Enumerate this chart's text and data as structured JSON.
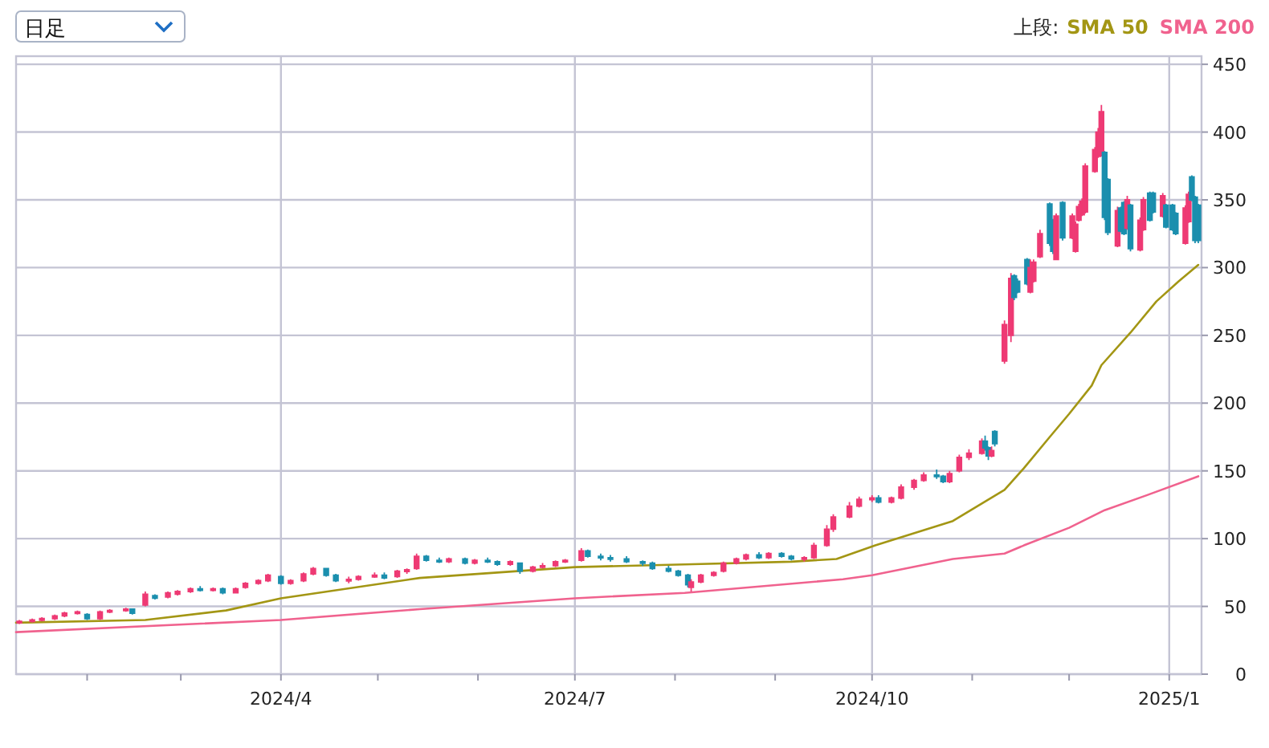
{
  "chart_data": {
    "type": "candlestick",
    "annotations": [
      "日足"
    ],
    "legend_title": "上段:",
    "legend": "top right",
    "grid": true,
    "colors": [
      "#ee3a74",
      "#ee3a74",
      "#ee3a74",
      "#ee3a74",
      "#ee3a74",
      "#ee3a74",
      "#1b8fae",
      "#ee3a74",
      "#ee3a74",
      "#ee3a74",
      "#1b8fae",
      "#ee3a74",
      "#1b8fae",
      "#ee3a74",
      "#ee3a74",
      "#ee3a74",
      "#1b8fae",
      "#ee3a74",
      "#1b8fae",
      "#ee3a74",
      "#ee3a74",
      "#ee3a74",
      "#ee3a74",
      "#1b8fae",
      "#ee3a74",
      "#ee3a74",
      "#ee3a74",
      "#1b8fae",
      "#1b8fae",
      "#ee3a74",
      "#ee3a74",
      "#ee3a74",
      "#1b8fae",
      "#ee3a74",
      "#ee3a74",
      "#ee3a74",
      "#1b8fae",
      "#1b8fae",
      "#ee3a74",
      "#1b8fae",
      "#ee3a74",
      "#1b8fae",
      "#1b8fae",
      "#ee3a74",
      "#1b8fae",
      "#ee3a74",
      "#ee3a74",
      "#ee3a74",
      "#ee3a74",
      "#ee3a74",
      "#1b8fae",
      "#1b8fae",
      "#1b8fae",
      "#1b8fae",
      "#1b8fae",
      "#1b8fae",
      "#1b8fae",
      "#1b8fae",
      "#1b8fae",
      "#ee3a74",
      "#ee3a74",
      "#ee3a74",
      "#ee3a74",
      "#ee3a74",
      "#ee3a74",
      "#1b8fae",
      "#ee3a74",
      "#1b8fae",
      "#1b8fae",
      "#ee3a74",
      "#ee3a74",
      "#ee3a74",
      "#ee3a74",
      "#ee3a74",
      "#ee3a74",
      "#ee3a74",
      "#1b8fae",
      "#ee3a74",
      "#ee3a74",
      "#ee3a74",
      "#ee3a74",
      "#1b8fae",
      "#1b8fae",
      "#ee3a74",
      "#ee3a74",
      "#ee3a74",
      "#ee3a74",
      "#1b8fae",
      "#1b8fae",
      "#ee3a74",
      "#1b8fae",
      "#ee3a74",
      "#ee3a74",
      "#1b8fae",
      "#1b8fae",
      "#1b8fae",
      "#ee3a74",
      "#ee3a74",
      "#ee3a74",
      "#1b8fae",
      "#1b8fae",
      "#ee3a74",
      "#1b8fae",
      "#ee3a74",
      "#ee3a74",
      "#ee3a74",
      "#ee3a74",
      "#ee3a74",
      "#ee3a74",
      "#ee3a74",
      "#ee3a74",
      "#1b8fae",
      "#1b8fae",
      "#ee3a74",
      "#1b8fae",
      "#1b8fae",
      "#ee3a74",
      "#1b8fae",
      "#ee3a74",
      "#ee3a74",
      "#1b8fae",
      "#1b8fae",
      "#ee3a74",
      "#1b8fae",
      "#1b8fae",
      "#1b8fae",
      "#ee3a74",
      "#ee3a74",
      "#1b8fae",
      "#1b8fae",
      "#1b8fae"
    ],
    "xlim": [
      "2024-01-10",
      "2025-01-11"
    ],
    "ylim": [
      0,
      456
    ],
    "xticks": [
      {
        "value": "2024-02-01",
        "label": null
      },
      {
        "value": "2024-03-01",
        "label": null
      },
      {
        "value": "2024-04-01",
        "label": "2024/4"
      },
      {
        "value": "2024-05-01",
        "label": null
      },
      {
        "value": "2024-06-01",
        "label": null
      },
      {
        "value": "2024-07-01",
        "label": "2024/7"
      },
      {
        "value": "2024-08-01",
        "label": null
      },
      {
        "value": "2024-09-01",
        "label": null
      },
      {
        "value": "2024-10-01",
        "label": "2024/10"
      },
      {
        "value": "2024-11-01",
        "label": null
      },
      {
        "value": "2024-12-01",
        "label": null
      },
      {
        "value": "2025-01-01",
        "label": "2025/1"
      }
    ],
    "yticks": [
      0,
      50,
      100,
      150,
      200,
      250,
      300,
      350,
      400,
      450
    ],
    "x": [
      "2024-01-11",
      "2024-01-15",
      "2024-01-18",
      "2024-01-22",
      "2024-01-25",
      "2024-01-29",
      "2024-02-01",
      "2024-02-05",
      "2024-02-08",
      "2024-02-13",
      "2024-02-15",
      "2024-02-19",
      "2024-02-22",
      "2024-02-26",
      "2024-02-29",
      "2024-03-04",
      "2024-03-07",
      "2024-03-11",
      "2024-03-14",
      "2024-03-18",
      "2024-03-21",
      "2024-03-25",
      "2024-03-28",
      "2024-04-01",
      "2024-04-04",
      "2024-04-08",
      "2024-04-11",
      "2024-04-15",
      "2024-04-18",
      "2024-04-22",
      "2024-04-25",
      "2024-04-30",
      "2024-05-03",
      "2024-05-07",
      "2024-05-10",
      "2024-05-13",
      "2024-05-16",
      "2024-05-20",
      "2024-05-23",
      "2024-05-28",
      "2024-05-31",
      "2024-06-04",
      "2024-06-07",
      "2024-06-11",
      "2024-06-14",
      "2024-06-18",
      "2024-06-21",
      "2024-06-25",
      "2024-06-28",
      "2024-07-03",
      "2024-07-05",
      "2024-07-09",
      "2024-07-12",
      "2024-07-17",
      "2024-07-22",
      "2024-07-25",
      "2024-07-30",
      "2024-08-02",
      "2024-08-05",
      "2024-08-06",
      "2024-08-09",
      "2024-08-13",
      "2024-08-16",
      "2024-08-20",
      "2024-08-23",
      "2024-08-27",
      "2024-08-30",
      "2024-09-03",
      "2024-09-06",
      "2024-09-10",
      "2024-09-13",
      "2024-09-17",
      "2024-09-19",
      "2024-09-24",
      "2024-09-27",
      "2024-10-01",
      "2024-10-03",
      "2024-10-07",
      "2024-10-10",
      "2024-10-14",
      "2024-10-17",
      "2024-10-21",
      "2024-10-23",
      "2024-10-25",
      "2024-10-28",
      "2024-10-31",
      "2024-11-04",
      "2024-11-05",
      "2024-11-06",
      "2024-11-07",
      "2024-11-08",
      "2024-11-11",
      "2024-11-13",
      "2024-11-14",
      "2024-11-15",
      "2024-11-18",
      "2024-11-19",
      "2024-11-20",
      "2024-11-22",
      "2024-11-25",
      "2024-11-26",
      "2024-11-27",
      "2024-11-29",
      "2024-12-02",
      "2024-12-03",
      "2024-12-04",
      "2024-12-05",
      "2024-12-06",
      "2024-12-09",
      "2024-12-10",
      "2024-12-11",
      "2024-12-12",
      "2024-12-13",
      "2024-12-16",
      "2024-12-17",
      "2024-12-18",
      "2024-12-19",
      "2024-12-20",
      "2024-12-23",
      "2024-12-24",
      "2024-12-26",
      "2024-12-27",
      "2024-12-30",
      "2024-12-31",
      "2025-01-02",
      "2025-01-03",
      "2025-01-06",
      "2025-01-07",
      "2025-01-08",
      "2025-01-09",
      "2025-01-10"
    ],
    "ohlc": [
      [
        38,
        40,
        37,
        39
      ],
      [
        39,
        41,
        38,
        40
      ],
      [
        40,
        42,
        39,
        41
      ],
      [
        41,
        44,
        40,
        43
      ],
      [
        43,
        46,
        42,
        45
      ],
      [
        45,
        47,
        44,
        46
      ],
      [
        44,
        45,
        40,
        41
      ],
      [
        41,
        47,
        40,
        46
      ],
      [
        46,
        48,
        45,
        47
      ],
      [
        47,
        49,
        46,
        48
      ],
      [
        48,
        48,
        44,
        45
      ],
      [
        51,
        61,
        50,
        59
      ],
      [
        58,
        59,
        55,
        56
      ],
      [
        57,
        61,
        56,
        60
      ],
      [
        59,
        62,
        58,
        61
      ],
      [
        61,
        64,
        60,
        63
      ],
      [
        63,
        65,
        61,
        62
      ],
      [
        62,
        64,
        61,
        63
      ],
      [
        63,
        64,
        59,
        60
      ],
      [
        60,
        64,
        60,
        63
      ],
      [
        64,
        68,
        63,
        67
      ],
      [
        67,
        70,
        66,
        69
      ],
      [
        69,
        74,
        68,
        73
      ],
      [
        72,
        73,
        66,
        67
      ],
      [
        67,
        70,
        66,
        69
      ],
      [
        69,
        75,
        68,
        74
      ],
      [
        74,
        79,
        73,
        78
      ],
      [
        78,
        78,
        72,
        73
      ],
      [
        73,
        74,
        68,
        69
      ],
      [
        69,
        72,
        67,
        70
      ],
      [
        70,
        73,
        69,
        72
      ],
      [
        72,
        75,
        71,
        73
      ],
      [
        73,
        75,
        70,
        71
      ],
      [
        72,
        77,
        71,
        76
      ],
      [
        76,
        78,
        74,
        77
      ],
      [
        78,
        89,
        77,
        87
      ],
      [
        87,
        88,
        83,
        84
      ],
      [
        84,
        86,
        82,
        83
      ],
      [
        83,
        86,
        82,
        85
      ],
      [
        85,
        86,
        81,
        82
      ],
      [
        82,
        85,
        81,
        84
      ],
      [
        84,
        86,
        82,
        83
      ],
      [
        83,
        84,
        80,
        81
      ],
      [
        81,
        84,
        80,
        83
      ],
      [
        82,
        82,
        74,
        76
      ],
      [
        76,
        80,
        75,
        79
      ],
      [
        79,
        82,
        78,
        80
      ],
      [
        80,
        84,
        79,
        83
      ],
      [
        83,
        85,
        82,
        84
      ],
      [
        84,
        93,
        83,
        91
      ],
      [
        91,
        92,
        86,
        87
      ],
      [
        87,
        89,
        84,
        86
      ],
      [
        86,
        88,
        83,
        85
      ],
      [
        85,
        87,
        82,
        83
      ],
      [
        83,
        84,
        80,
        82
      ],
      [
        82,
        83,
        77,
        78
      ],
      [
        78,
        80,
        75,
        76
      ],
      [
        76,
        77,
        72,
        73
      ],
      [
        73,
        74,
        64,
        66
      ],
      [
        64,
        70,
        61,
        68
      ],
      [
        68,
        74,
        67,
        73
      ],
      [
        73,
        76,
        72,
        75
      ],
      [
        76,
        83,
        75,
        82
      ],
      [
        82,
        86,
        81,
        85
      ],
      [
        85,
        89,
        84,
        88
      ],
      [
        88,
        90,
        85,
        86
      ],
      [
        86,
        90,
        85,
        89
      ],
      [
        89,
        90,
        86,
        87
      ],
      [
        87,
        88,
        84,
        85
      ],
      [
        85,
        87,
        83,
        86
      ],
      [
        86,
        97,
        85,
        95
      ],
      [
        95,
        110,
        94,
        107
      ],
      [
        107,
        118,
        105,
        116
      ],
      [
        116,
        127,
        115,
        124
      ],
      [
        124,
        131,
        123,
        129
      ],
      [
        129,
        132,
        127,
        130
      ],
      [
        130,
        132,
        126,
        127
      ],
      [
        127,
        131,
        126,
        130
      ],
      [
        130,
        140,
        129,
        138
      ],
      [
        138,
        144,
        136,
        143
      ],
      [
        143,
        149,
        142,
        147
      ],
      [
        147,
        151,
        144,
        146
      ],
      [
        146,
        147,
        141,
        142
      ],
      [
        142,
        150,
        141,
        148
      ],
      [
        150,
        162,
        149,
        160
      ],
      [
        160,
        166,
        158,
        163
      ],
      [
        163,
        174,
        162,
        172
      ],
      [
        172,
        176,
        165,
        167
      ],
      [
        167,
        168,
        158,
        161
      ],
      [
        161,
        168,
        160,
        165
      ],
      [
        179,
        180,
        168,
        170
      ],
      [
        231,
        261,
        229,
        258
      ],
      [
        250,
        296,
        245,
        292
      ],
      [
        294,
        295,
        276,
        278
      ],
      [
        290,
        292,
        281,
        282
      ],
      [
        306,
        307,
        287,
        288
      ],
      [
        282,
        306,
        281,
        300
      ],
      [
        290,
        306,
        289,
        304
      ],
      [
        308,
        328,
        307,
        325
      ],
      [
        347,
        348,
        316,
        318
      ],
      [
        335,
        336,
        310,
        312
      ],
      [
        306,
        340,
        306,
        338
      ],
      [
        348,
        349,
        320,
        322
      ],
      [
        322,
        340,
        321,
        338
      ],
      [
        312,
        334,
        311,
        332
      ],
      [
        335,
        347,
        334,
        345
      ],
      [
        339,
        351,
        338,
        349
      ],
      [
        341,
        377,
        340,
        375
      ],
      [
        371,
        389,
        370,
        387
      ],
      [
        382,
        403,
        381,
        400
      ],
      [
        383,
        420,
        382,
        415
      ],
      [
        385,
        386,
        335,
        337
      ],
      [
        365,
        366,
        324,
        326
      ],
      [
        316,
        345,
        315,
        342
      ],
      [
        344,
        345,
        326,
        327
      ],
      [
        348,
        349,
        324,
        325
      ],
      [
        329,
        353,
        328,
        350
      ],
      [
        346,
        347,
        312,
        314
      ],
      [
        313,
        337,
        312,
        335
      ],
      [
        328,
        352,
        327,
        350
      ],
      [
        355,
        356,
        334,
        335
      ],
      [
        355,
        356,
        340,
        341
      ],
      [
        338,
        355,
        337,
        353
      ],
      [
        346,
        347,
        329,
        330
      ],
      [
        346,
        347,
        327,
        328
      ],
      [
        340,
        341,
        324,
        325
      ],
      [
        318,
        346,
        317,
        344
      ],
      [
        334,
        356,
        333,
        354
      ],
      [
        367,
        368,
        349,
        350
      ],
      [
        352,
        353,
        318,
        320
      ],
      [
        346,
        347,
        318,
        320
      ]
    ],
    "series": [
      {
        "name": "SMA 50",
        "type": "line",
        "color": "#a39614",
        "x": [
          "2024-01-10",
          "2024-02-19",
          "2024-03-15",
          "2024-04-01",
          "2024-05-14",
          "2024-07-01",
          "2024-08-04",
          "2024-09-06",
          "2024-09-20",
          "2024-10-02",
          "2024-10-26",
          "2024-11-11",
          "2024-11-17",
          "2024-11-25",
          "2024-12-01",
          "2024-12-08",
          "2024-12-11",
          "2024-12-20",
          "2024-12-28",
          "2025-01-04",
          "2025-01-10"
        ],
        "values": [
          38,
          40,
          47,
          56,
          71,
          79,
          81,
          83,
          85,
          95,
          113,
          136,
          152,
          175,
          192,
          213,
          228,
          252,
          275,
          290,
          302
        ]
      },
      {
        "name": "SMA 200",
        "type": "line",
        "color": "#f0628e",
        "x": [
          "2024-01-10",
          "2024-04-01",
          "2024-05-14",
          "2024-07-01",
          "2024-08-04",
          "2024-09-22",
          "2024-10-01",
          "2024-10-26",
          "2024-11-11",
          "2024-11-17",
          "2024-12-01",
          "2024-12-12",
          "2024-12-25",
          "2025-01-10"
        ],
        "values": [
          31,
          40,
          48,
          56,
          60,
          70,
          73,
          85,
          89,
          95,
          108,
          121,
          132,
          146
        ]
      }
    ]
  }
}
